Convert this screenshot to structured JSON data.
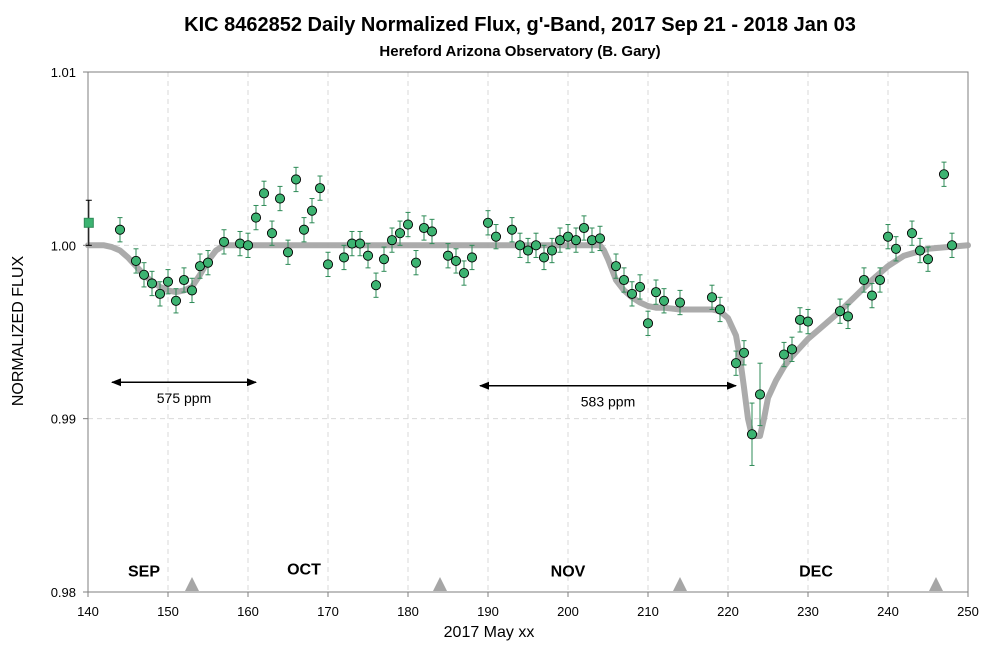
{
  "chart_data": {
    "type": "scatter",
    "title": "KIC 8462852 Daily Normalized Flux, g'-Band, 2017 Sep 21 - 2018 Jan 03",
    "subtitle": "Hereford Arizona Observatory (B. Gary)",
    "xlabel": "2017 May xx",
    "ylabel": "NORMALIZED FLUX",
    "xlim": [
      140,
      250
    ],
    "ylim": [
      0.98,
      1.01
    ],
    "x_ticks": [
      "140",
      "150",
      "160",
      "170",
      "180",
      "190",
      "200",
      "210",
      "220",
      "230",
      "240",
      "250"
    ],
    "y_ticks": [
      "0.98",
      "0.99",
      "1.00",
      "1.01"
    ],
    "grid": true,
    "colors": {
      "point_fill": "#3cb371",
      "point_stroke": "#000000",
      "errorbar": "#2e8b57",
      "model": "#a6a6a6",
      "reference_point": "#3cb371",
      "triangle": "#a6a6a6",
      "grid": "#d9d9d9"
    },
    "reference_point": {
      "x": 140.1,
      "y": 1.0013,
      "err": 0.0013
    },
    "series": [
      {
        "x": [
          144,
          146,
          147,
          148,
          149,
          150,
          151,
          152,
          153,
          154,
          155,
          157,
          159,
          160,
          161,
          162,
          163,
          164,
          165,
          166,
          167,
          168,
          169,
          170,
          172,
          173,
          174,
          175,
          176,
          177,
          178,
          179,
          180,
          181,
          182,
          183,
          185,
          186,
          187,
          188,
          190,
          191,
          193,
          194,
          195,
          196,
          197,
          198,
          199,
          200,
          201,
          202,
          203,
          204,
          206,
          207,
          208,
          209,
          210,
          211,
          212,
          214,
          218,
          219,
          221,
          222,
          223,
          224,
          227,
          228,
          229,
          230,
          234,
          235,
          237,
          238,
          239,
          240,
          241,
          243,
          244,
          245,
          247,
          248
        ],
        "y": [
          1.0009,
          0.9991,
          0.9983,
          0.9978,
          0.9972,
          0.9979,
          0.9968,
          0.998,
          0.9974,
          0.9988,
          0.999,
          1.0002,
          1.0001,
          1.0,
          1.0016,
          1.003,
          1.0007,
          1.0027,
          0.9996,
          1.0038,
          1.0009,
          1.002,
          1.0033,
          0.9989,
          0.9993,
          1.0001,
          1.0001,
          0.9994,
          0.9977,
          0.9992,
          1.0003,
          1.0007,
          1.0012,
          0.999,
          1.001,
          1.0008,
          0.9994,
          0.9991,
          0.9984,
          0.9993,
          1.0013,
          1.0005,
          1.0009,
          1.0,
          0.9997,
          1.0,
          0.9993,
          0.9997,
          1.0003,
          1.0005,
          1.0003,
          1.001,
          1.0003,
          1.0004,
          0.9988,
          0.998,
          0.9972,
          0.9976,
          0.9955,
          0.9973,
          0.9968,
          0.9967,
          0.997,
          0.9963,
          0.9932,
          0.9938,
          0.9891,
          0.9914,
          0.9937,
          0.994,
          0.9957,
          0.9956,
          0.9962,
          0.9959,
          0.998,
          0.9971,
          0.998,
          1.0005,
          0.9998,
          1.0007,
          0.9997,
          0.9992,
          1.0041,
          1.0
        ]
      }
    ],
    "model_curve": {
      "x": [
        140,
        142,
        143,
        144,
        145,
        146,
        147,
        148,
        149,
        150,
        151,
        152,
        153,
        154,
        155,
        156,
        157,
        158,
        160,
        204,
        204.5,
        205,
        205.5,
        206,
        207,
        208,
        209,
        210,
        211,
        212,
        214,
        216,
        218,
        219,
        220,
        221,
        221.5,
        222,
        222.5,
        223,
        224,
        224.5,
        225,
        226,
        227,
        228,
        229,
        230,
        232,
        234,
        236,
        238,
        240,
        242,
        245,
        250
      ],
      "y": [
        1.0,
        1.0,
        0.9999,
        0.9997,
        0.9993,
        0.9988,
        0.9983,
        0.9979,
        0.9976,
        0.9974,
        0.9973,
        0.9974,
        0.9976,
        0.9983,
        0.9991,
        0.9997,
        1.0,
        1.0,
        1.0,
        1.0,
        0.9997,
        0.9992,
        0.9986,
        0.998,
        0.9974,
        0.997,
        0.9967,
        0.9965,
        0.9964,
        0.9964,
        0.9963,
        0.9963,
        0.9963,
        0.9962,
        0.9958,
        0.9948,
        0.9935,
        0.9918,
        0.99,
        0.989,
        0.989,
        0.99,
        0.9912,
        0.9922,
        0.993,
        0.9936,
        0.9941,
        0.9946,
        0.9954,
        0.9962,
        0.9971,
        0.998,
        0.9988,
        0.9994,
        0.9998,
        1.0
      ]
    },
    "month_labels": [
      {
        "label": "SEP",
        "x": 147,
        "y": 0.9809
      },
      {
        "label": "OCT",
        "x": 167,
        "y": 0.981
      },
      {
        "label": "NOV",
        "x": 200,
        "y": 0.9809
      },
      {
        "label": "DEC",
        "x": 231,
        "y": 0.9809
      }
    ],
    "month_triangles": [
      153,
      184,
      214,
      246
    ],
    "annotations": [
      {
        "label": "575 ppm",
        "x1": 143,
        "x2": 161,
        "arrow_y": 0.9921,
        "text_x": 152,
        "text_y": 0.9912
      },
      {
        "label": "583 ppm",
        "x1": 189,
        "x2": 221,
        "arrow_y": 0.9919,
        "text_x": 205,
        "text_y": 0.991
      }
    ]
  }
}
